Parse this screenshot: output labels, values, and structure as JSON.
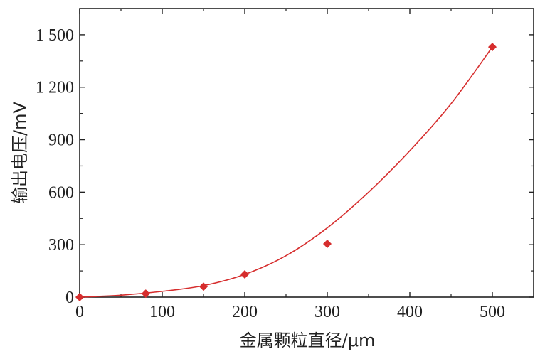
{
  "chart_data": {
    "type": "scatter",
    "xlabel": "金属颗粒直径/μm",
    "ylabel": "输出电压/mV",
    "xlim": [
      0,
      550
    ],
    "ylim": [
      0,
      1650
    ],
    "x_ticks": [
      "0",
      "100",
      "200",
      "300",
      "400",
      "500"
    ],
    "y_ticks": [
      "0",
      "300",
      "600",
      "900",
      "1 200",
      "1 500"
    ],
    "grid": false,
    "legend": "none",
    "series": [
      {
        "type": "scatter",
        "marker": "diamond",
        "color": "#d62d2d",
        "points": [
          {
            "x": 0,
            "y": 0
          },
          {
            "x": 80,
            "y": 20
          },
          {
            "x": 150,
            "y": 60
          },
          {
            "x": 200,
            "y": 130
          },
          {
            "x": 300,
            "y": 305
          },
          {
            "x": 500,
            "y": 1430
          }
        ]
      },
      {
        "type": "line",
        "fit": "polynomial",
        "color": "#d62d2d",
        "points": [
          {
            "x": 0,
            "y": 0
          },
          {
            "x": 50,
            "y": 11
          },
          {
            "x": 100,
            "y": 33
          },
          {
            "x": 150,
            "y": 66
          },
          {
            "x": 200,
            "y": 130
          },
          {
            "x": 250,
            "y": 237
          },
          {
            "x": 300,
            "y": 396
          },
          {
            "x": 350,
            "y": 600
          },
          {
            "x": 400,
            "y": 837
          },
          {
            "x": 450,
            "y": 1106
          },
          {
            "x": 500,
            "y": 1430
          }
        ]
      }
    ]
  }
}
